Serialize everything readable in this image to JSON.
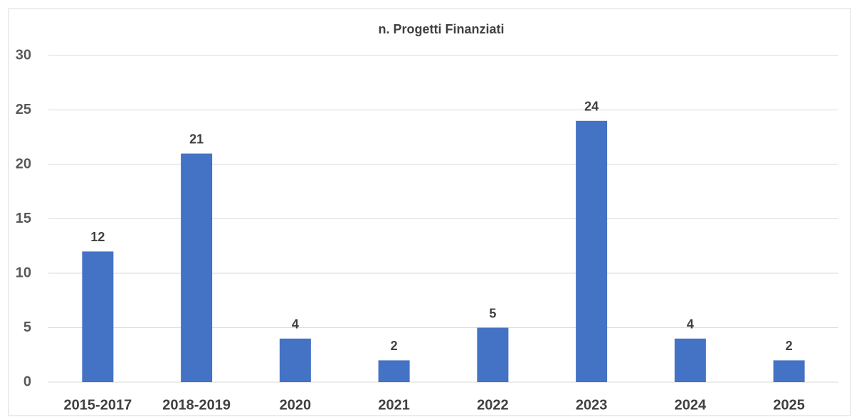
{
  "chart_data": {
    "type": "bar",
    "title": "n. Progetti Finanziati",
    "categories": [
      "2015-2017",
      "2018-2019",
      "2020",
      "2021",
      "2022",
      "2023",
      "2024",
      "2025"
    ],
    "values": [
      12,
      21,
      4,
      2,
      5,
      24,
      4,
      2
    ],
    "color": "#4472c4",
    "ylim": [
      0,
      30
    ],
    "yticks": [
      0,
      5,
      10,
      15,
      20,
      25,
      30
    ],
    "grid": true
  }
}
